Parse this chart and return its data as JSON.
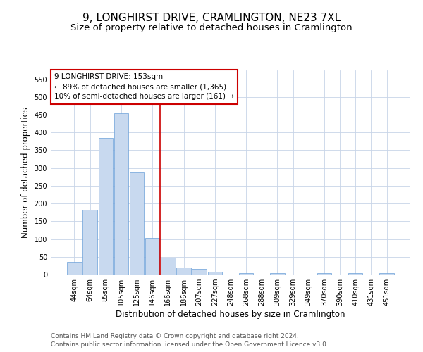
{
  "title": "9, LONGHIRST DRIVE, CRAMLINGTON, NE23 7XL",
  "subtitle": "Size of property relative to detached houses in Cramlington",
  "xlabel": "Distribution of detached houses by size in Cramlington",
  "ylabel": "Number of detached properties",
  "bar_labels": [
    "44sqm",
    "64sqm",
    "85sqm",
    "105sqm",
    "125sqm",
    "146sqm",
    "166sqm",
    "186sqm",
    "207sqm",
    "227sqm",
    "248sqm",
    "268sqm",
    "288sqm",
    "309sqm",
    "329sqm",
    "349sqm",
    "370sqm",
    "390sqm",
    "410sqm",
    "431sqm",
    "451sqm"
  ],
  "bar_values": [
    35,
    183,
    385,
    455,
    287,
    103,
    47,
    20,
    15,
    8,
    0,
    4,
    0,
    4,
    0,
    0,
    4,
    0,
    4,
    0,
    4
  ],
  "bar_color": "#c8d9ef",
  "bar_edge_color": "#6a9fd8",
  "vline_x": 5.5,
  "vline_color": "#cc0000",
  "annotation_text": "9 LONGHIRST DRIVE: 153sqm\n← 89% of detached houses are smaller (1,365)\n10% of semi-detached houses are larger (161) →",
  "annotation_box_color": "#ffffff",
  "annotation_box_edge": "#cc0000",
  "ylim": [
    0,
    575
  ],
  "yticks": [
    0,
    50,
    100,
    150,
    200,
    250,
    300,
    350,
    400,
    450,
    500,
    550
  ],
  "footnote1": "Contains HM Land Registry data © Crown copyright and database right 2024.",
  "footnote2": "Contains public sector information licensed under the Open Government Licence v3.0.",
  "bg_color": "#ffffff",
  "grid_color": "#c8d4e8",
  "title_fontsize": 11,
  "subtitle_fontsize": 9.5,
  "axis_label_fontsize": 8.5,
  "tick_fontsize": 7,
  "annotation_fontsize": 7.5,
  "footnote_fontsize": 6.5
}
